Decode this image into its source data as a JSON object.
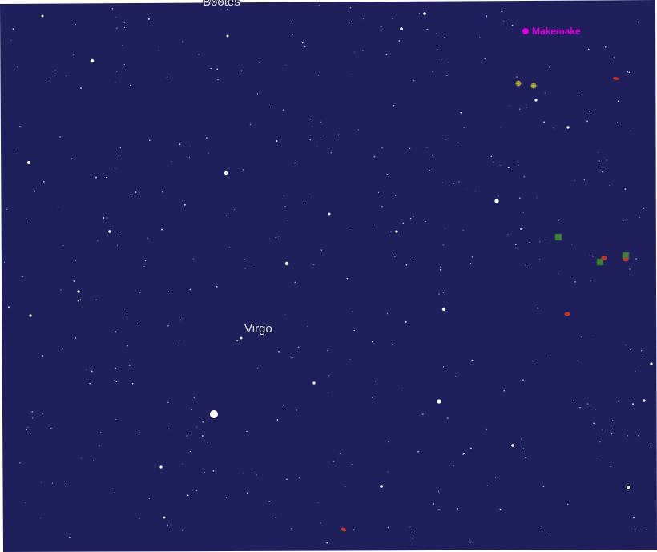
{
  "map": {
    "background_color": "#1f1f5c",
    "constellations": [
      {
        "id": "bootes",
        "label": "Bootes"
      },
      {
        "id": "virgo",
        "label": "Virgo"
      }
    ],
    "highlighted_object": {
      "label": "Makemake",
      "marker_color": "#e000e0"
    },
    "colors": {
      "star": "#ffffff",
      "galaxy_red": "#c0392b",
      "nebula_green": "#3f7f3f",
      "cluster_olive": "#8c8c2c"
    },
    "icons": [
      "star-icon",
      "galaxy-icon",
      "nebula-icon",
      "globular-cluster-icon",
      "planet-marker-icon"
    ]
  }
}
